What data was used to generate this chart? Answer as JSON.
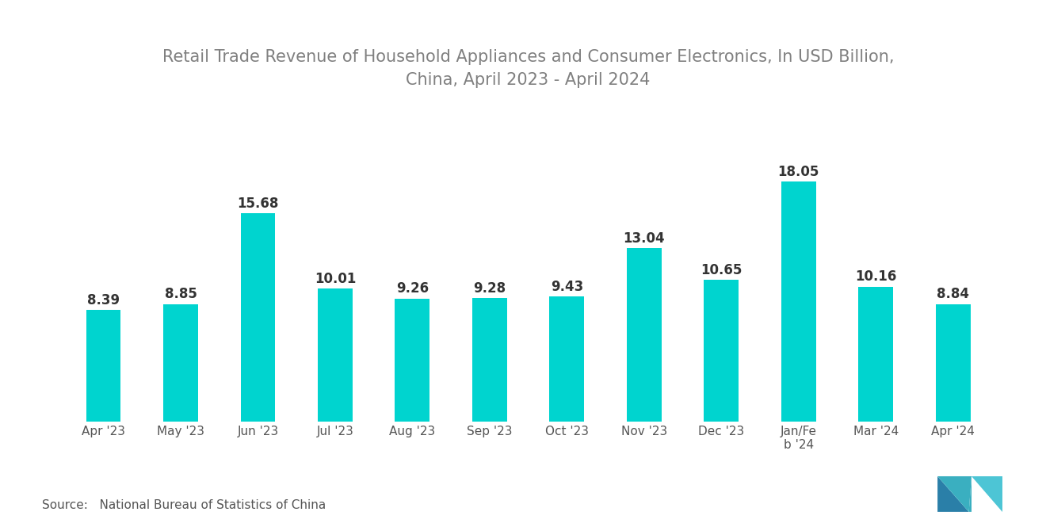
{
  "title": "Retail Trade Revenue of Household Appliances and Consumer Electronics, In USD Billion,\nChina, April 2023 - April 2024",
  "categories": [
    "Apr '23",
    "May '23",
    "Jun '23",
    "Jul '23",
    "Aug '23",
    "Sep '23",
    "Oct '23",
    "Nov '23",
    "Dec '23",
    "Jan/Fe\nb '24",
    "Mar '24",
    "Apr '24"
  ],
  "values": [
    8.39,
    8.85,
    15.68,
    10.01,
    9.26,
    9.28,
    9.43,
    13.04,
    10.65,
    18.05,
    10.16,
    8.84
  ],
  "bar_color": "#00D4CF",
  "background_color": "#ffffff",
  "title_color": "#808080",
  "title_fontsize": 15,
  "value_fontsize": 12,
  "xlabel_fontsize": 11,
  "source_text": "Source:   National Bureau of Statistics of China",
  "source_fontsize": 11,
  "ylim": [
    0,
    23
  ],
  "bar_width": 0.45
}
